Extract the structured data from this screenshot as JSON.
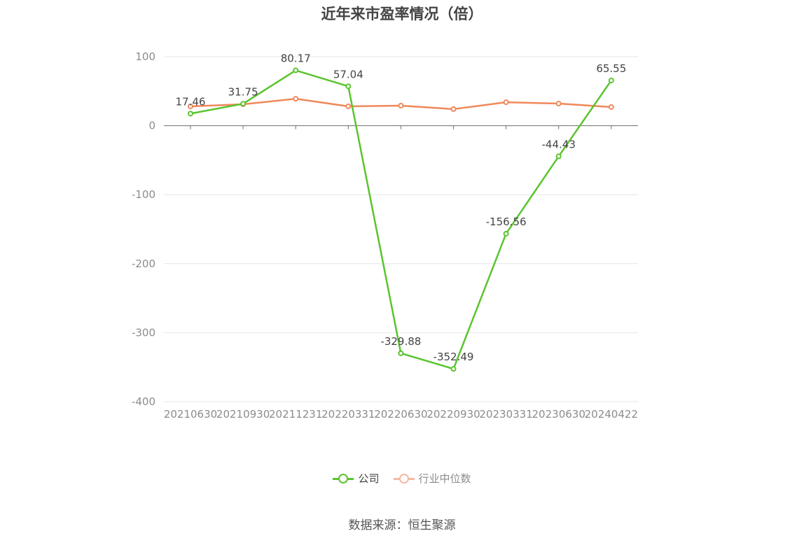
{
  "chart_data": {
    "type": "line",
    "title": "近年来市盈率情况（倍）",
    "categories": [
      "20210630",
      "20210930",
      "20211231",
      "20220331",
      "20220630",
      "20220930",
      "20230331",
      "20230630",
      "20240422"
    ],
    "series": [
      {
        "name": "公司",
        "color": "#5ac42f",
        "values": [
          17.46,
          31.75,
          80.17,
          57.04,
          -329.88,
          -352.49,
          -156.56,
          -44.43,
          65.55
        ],
        "show_labels": true
      },
      {
        "name": "行业中位数",
        "color": "#f0885a",
        "legend_color": "#f5b9a3",
        "values": [
          28,
          31,
          39,
          28,
          29,
          24,
          34,
          32,
          27
        ],
        "show_labels": false
      }
    ],
    "ylim": [
      -400,
      100
    ],
    "yticks": [
      100,
      0,
      -100,
      -200,
      -300,
      -400
    ],
    "grid": true,
    "legend_position": "bottom-center"
  },
  "source": "数据来源：恒生聚源"
}
